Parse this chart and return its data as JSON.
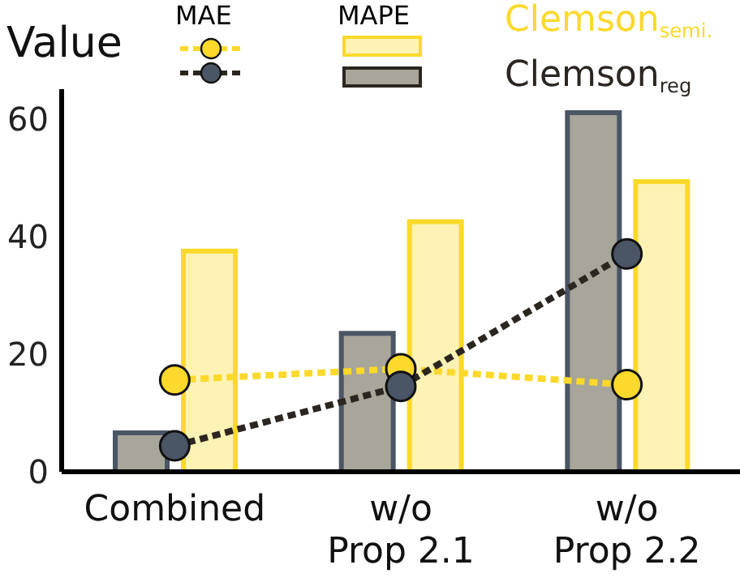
{
  "chart_data": {
    "type": "bar",
    "ylabel": "Value",
    "categories": [
      "Combined",
      "w/o Prop 2.1",
      "w/o Prop 2.2"
    ],
    "series": [
      {
        "color": "#4a5565",
        "values": [
          6.6,
          23.5,
          61
        ]
      },
      {
        "color": "#fcd92a",
        "values": [
          37.5,
          42.5,
          49.3
        ]
      },
      {
        "name": "Clemson$_{semi.}$",
        "type": "line",
        "color": "#fcd92a",
        "values": [
          15.6,
          17.5,
          14.8
        ]
      },
      {
        "name": "Clemson$_{reg}$",
        "type": "line",
        "color": "#2b2620",
        "values": [
          4.4,
          14.5,
          37
        ]
      }
    ],
    "annotations": [
      "MAE",
      "MAPE"
    ],
    "ylim": [
      0,
      65
    ],
    "yticks": [
      0,
      20,
      40,
      60
    ],
    "legend": "top",
    "marker": "circle",
    "line_style": "dashed",
    "grid": false
  }
}
